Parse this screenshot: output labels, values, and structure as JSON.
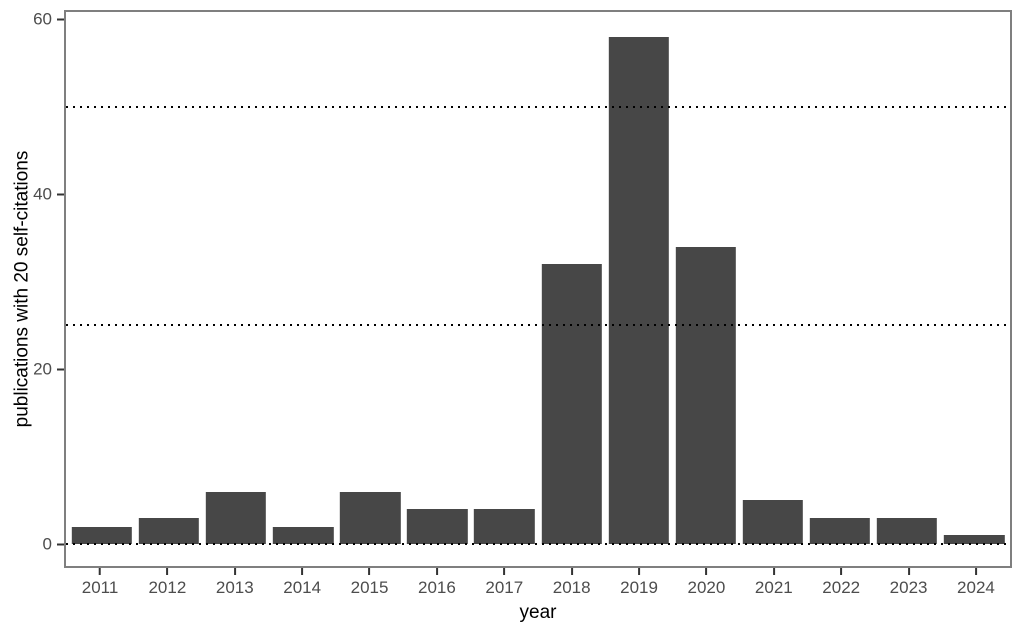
{
  "chart_data": {
    "type": "bar",
    "title": "",
    "xlabel": "year",
    "ylabel": "publications with 20 self-citations",
    "categories": [
      "2011",
      "2012",
      "2013",
      "2014",
      "2015",
      "2016",
      "2017",
      "2018",
      "2019",
      "2020",
      "2021",
      "2022",
      "2023",
      "2024"
    ],
    "values": [
      2,
      3,
      6,
      2,
      6,
      4,
      4,
      32,
      58,
      34,
      5,
      3,
      3,
      1
    ],
    "y_ticks": [
      0,
      20,
      40,
      60
    ],
    "hlines": [
      0,
      25,
      50
    ],
    "ylim": [
      -2.5,
      60.8
    ],
    "bar_width_ratio": 0.9,
    "grid": "dotted black horizontal lines at 0, 25 and 50 drawn over bars",
    "legend": "none"
  },
  "colors": {
    "bar_fill": "#474747",
    "panel_border": "#7f7f7f",
    "tick_label": "#4d4d4d",
    "axis_title": "#000000",
    "gridline": "#000000",
    "tick_mark": "#333333",
    "background": "#ffffff"
  }
}
